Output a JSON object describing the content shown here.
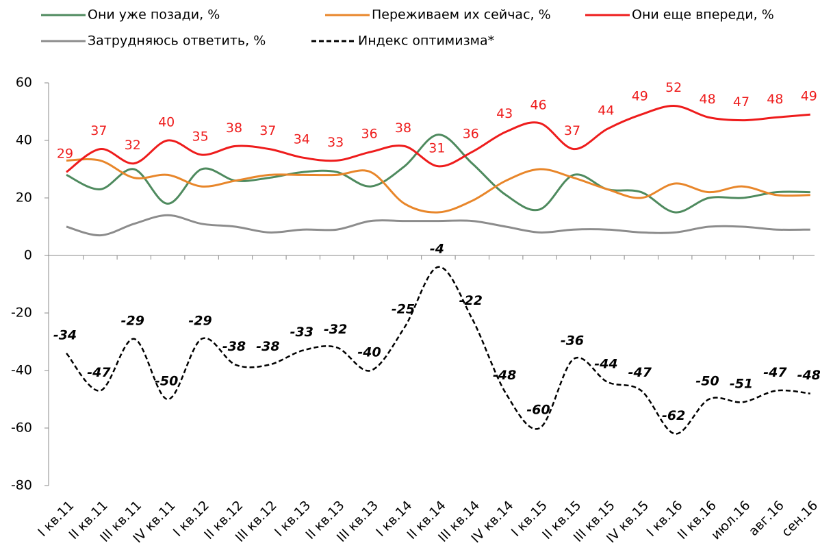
{
  "chart_data": {
    "type": "line",
    "categories": [
      "I кв.11",
      "II кв.11",
      "III кв.11",
      "IV кв.11",
      "I кв.12",
      "II кв.12",
      "III кв.12",
      "I кв.13",
      "II кв.13",
      "III кв.13",
      "I кв.14",
      "II кв.14",
      "III кв.14",
      "IV кв.14",
      "I кв.15",
      "II кв.15",
      "III кв.15",
      "IV кв.15",
      "I кв.16",
      "II кв.16",
      "июл.16",
      "авг.16",
      "сен.16"
    ],
    "series": [
      {
        "name": "Они уже позади, %",
        "color": "#4e8a5e",
        "values": [
          28,
          23,
          30,
          18,
          30,
          26,
          27,
          29,
          29,
          24,
          31,
          42,
          32,
          21,
          16,
          28,
          23,
          22,
          15,
          20,
          20,
          22,
          22
        ]
      },
      {
        "name": "Переживаем их сейчас, %",
        "color": "#e8862a",
        "values": [
          33,
          33,
          27,
          28,
          24,
          26,
          28,
          28,
          28,
          29,
          18,
          15,
          19,
          26,
          30,
          27,
          23,
          20,
          25,
          22,
          24,
          21,
          21
        ]
      },
      {
        "name": "Они еще впереди, %",
        "color": "#ee1c1c",
        "data_labels": true,
        "values": [
          29,
          37,
          32,
          40,
          35,
          38,
          37,
          34,
          33,
          36,
          38,
          31,
          36,
          43,
          46,
          37,
          44,
          49,
          52,
          48,
          47,
          48,
          49
        ]
      },
      {
        "name": "Затрудняюсь ответить, %",
        "color": "#8c8c8c",
        "values": [
          10,
          7,
          11,
          14,
          11,
          10,
          8,
          9,
          9,
          12,
          12,
          12,
          12,
          10,
          8,
          9,
          9,
          8,
          8,
          10,
          10,
          9,
          9
        ]
      },
      {
        "name": "Индекс оптимизма*",
        "color": "#000000",
        "dash": true,
        "data_labels": true,
        "values": [
          -34,
          -47,
          -29,
          -50,
          -29,
          -38,
          -38,
          -33,
          -32,
          -40,
          -25,
          -4,
          -22,
          -48,
          -60,
          -36,
          -44,
          -47,
          -62,
          -50,
          -51,
          -47,
          -48
        ]
      }
    ],
    "ylim": [
      -80,
      60
    ],
    "yticks": [
      60,
      40,
      20,
      0,
      -20,
      -40,
      -60,
      -80
    ]
  }
}
